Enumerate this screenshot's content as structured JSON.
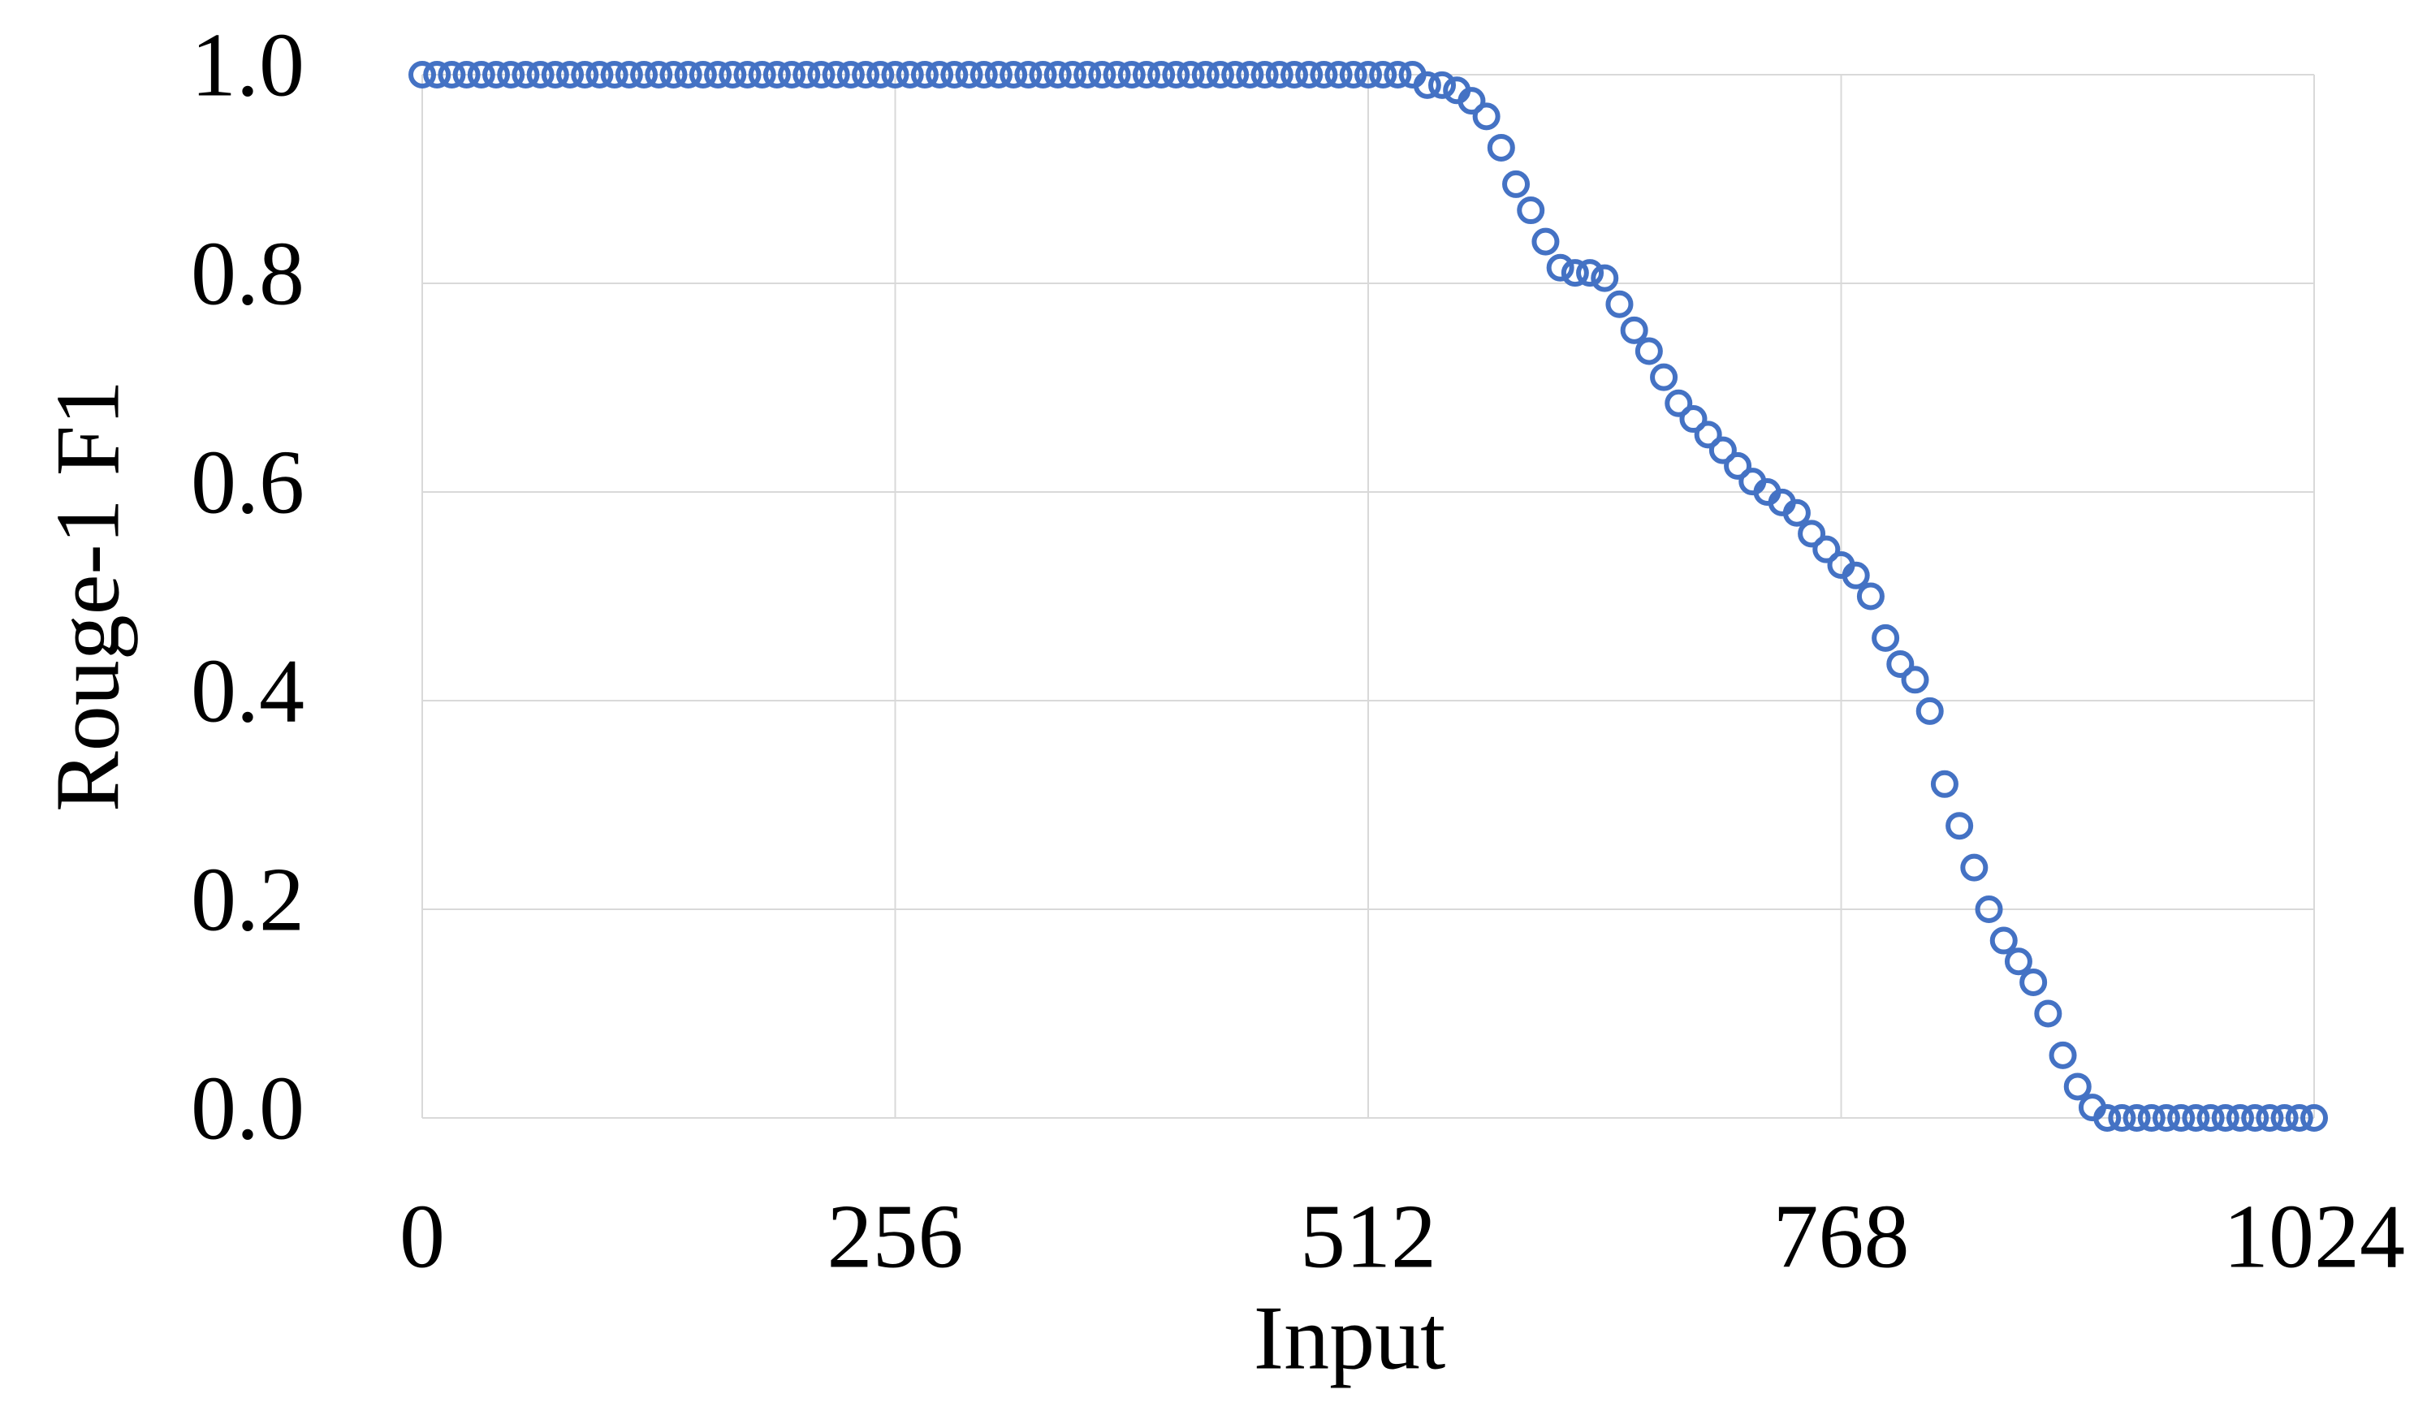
{
  "chart_data": {
    "type": "scatter",
    "x_label": "Input",
    "y_label": "Rouge-1 F1",
    "x": [
      0,
      8,
      16,
      24,
      32,
      40,
      48,
      56,
      64,
      72,
      80,
      88,
      96,
      104,
      112,
      120,
      128,
      136,
      144,
      152,
      160,
      168,
      176,
      184,
      192,
      200,
      208,
      216,
      224,
      232,
      240,
      248,
      256,
      264,
      272,
      280,
      288,
      296,
      304,
      312,
      320,
      328,
      336,
      344,
      352,
      360,
      368,
      376,
      384,
      392,
      400,
      408,
      416,
      424,
      432,
      440,
      448,
      456,
      464,
      472,
      480,
      488,
      496,
      504,
      512,
      520,
      528,
      536,
      544,
      552,
      560,
      568,
      576,
      584,
      592,
      600,
      608,
      616,
      624,
      632,
      640,
      648,
      656,
      664,
      672,
      680,
      688,
      696,
      704,
      712,
      720,
      728,
      736,
      744,
      752,
      760,
      768,
      776,
      784,
      792,
      800,
      808,
      816,
      824,
      832,
      840,
      848,
      856,
      864,
      872,
      880,
      888,
      896,
      904,
      912,
      920,
      928,
      936,
      944,
      952,
      960,
      968,
      976,
      984,
      992,
      1000,
      1008,
      1016,
      1024
    ],
    "values": [
      1,
      1,
      1,
      1,
      1,
      1,
      1,
      1,
      1,
      1,
      1,
      1,
      1,
      1,
      1,
      1,
      1,
      1,
      1,
      1,
      1,
      1,
      1,
      1,
      1,
      1,
      1,
      1,
      1,
      1,
      1,
      1,
      1,
      1,
      1,
      1,
      1,
      1,
      1,
      1,
      1,
      1,
      1,
      1,
      1,
      1,
      1,
      1,
      1,
      1,
      1,
      1,
      1,
      1,
      1,
      1,
      1,
      1,
      1,
      1,
      1,
      1,
      1,
      1,
      1,
      1,
      1,
      1,
      0.99,
      0.99,
      0.985,
      0.975,
      0.96,
      0.93,
      0.895,
      0.87,
      0.84,
      0.815,
      0.81,
      0.81,
      0.805,
      0.78,
      0.755,
      0.735,
      0.71,
      0.685,
      0.67,
      0.655,
      0.64,
      0.625,
      0.61,
      0.6,
      0.59,
      0.58,
      0.56,
      0.545,
      0.53,
      0.52,
      0.5,
      0.46,
      0.435,
      0.42,
      0.39,
      0.32,
      0.28,
      0.24,
      0.2,
      0.17,
      0.15,
      0.13,
      0.1,
      0.06,
      0.03,
      0.01,
      0,
      0,
      0,
      0,
      0,
      0,
      0,
      0,
      0,
      0,
      0,
      0,
      0,
      0,
      0
    ],
    "color": "#4472c4",
    "xlim": [
      0,
      1024
    ],
    "xticks": [
      0,
      256,
      512,
      768,
      1024
    ],
    "ylim": [
      0,
      1
    ],
    "yticks": [
      {
        "value": 0,
        "label": "0.0"
      },
      0.2,
      0.4,
      0.6,
      0.8,
      {
        "value": 1,
        "label": "1.0"
      }
    ],
    "grid": true
  }
}
